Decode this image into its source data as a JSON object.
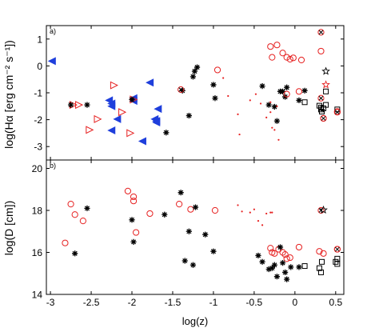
{
  "chart_data": [
    {
      "type": "scatter",
      "panel_label": "a)",
      "xlabel": "",
      "ylabel": "log(Hα [erg cm⁻² s⁻¹])",
      "xlim": [
        -3.05,
        0.6
      ],
      "ylim": [
        -3.5,
        1.5
      ],
      "xticks": [
        -3,
        -2.5,
        -2,
        -1.5,
        -1,
        -0.5,
        0,
        0.5
      ],
      "yticks": [
        -3,
        -2,
        -1,
        0,
        1
      ],
      "ytick_labels": [
        "-3",
        "-2",
        "-1",
        "0",
        "1"
      ],
      "grid": false,
      "series": [
        {
          "marker": "triangle-left-filled",
          "color": "#1f3fdc",
          "points": [
            [
              -2.98,
              0.18
            ],
            [
              -2.28,
              -1.28
            ],
            [
              -2.25,
              -1.4
            ],
            [
              -2.25,
              -1.5
            ],
            [
              -2.18,
              -1.98
            ],
            [
              -2.25,
              -2.4
            ],
            [
              -1.98,
              -1.2
            ],
            [
              -1.98,
              -1.3
            ],
            [
              -1.87,
              -2.8
            ],
            [
              -1.78,
              -0.62
            ],
            [
              -1.68,
              -1.6
            ],
            [
              -1.72,
              -1.98
            ],
            [
              -1.7,
              -2.05
            ],
            [
              -1.7,
              -2.1
            ]
          ]
        },
        {
          "marker": "triangle-right-open",
          "color": "#e62020",
          "points": [
            [
              -2.72,
              -1.45
            ],
            [
              -2.65,
              -1.45
            ],
            [
              -2.52,
              -2.38
            ],
            [
              -2.42,
              -1.98
            ],
            [
              -2.22,
              -0.72
            ],
            [
              -2.12,
              -1.72
            ],
            [
              -2.02,
              -2.5
            ],
            [
              -1.98,
              -1.25
            ]
          ]
        },
        {
          "marker": "asterisk",
          "color": "#000000",
          "points": [
            [
              -2.75,
              -1.45
            ],
            [
              -2.55,
              -1.45
            ],
            [
              -2.0,
              -1.25
            ],
            [
              -1.58,
              -2.48
            ],
            [
              -1.38,
              -0.92
            ],
            [
              -1.3,
              -1.85
            ],
            [
              -1.25,
              -0.4
            ],
            [
              -1.23,
              -0.2
            ],
            [
              -1.2,
              -0.05
            ],
            [
              -1.0,
              -0.7
            ],
            [
              -0.98,
              -1.2
            ],
            [
              -0.4,
              -0.75
            ],
            [
              -0.32,
              -1.45
            ],
            [
              -0.25,
              -1.52
            ],
            [
              -0.22,
              -2.05
            ],
            [
              -0.18,
              -0.95
            ],
            [
              -0.15,
              -0.95
            ],
            [
              -0.12,
              -1.15
            ],
            [
              -0.1,
              -0.8
            ],
            [
              0.05,
              -1.28
            ],
            [
              0.12,
              -0.92
            ]
          ]
        },
        {
          "marker": "circle-open",
          "color": "#e62020",
          "points": [
            [
              -0.95,
              -0.15
            ],
            [
              -0.3,
              0.72
            ],
            [
              -0.28,
              0.32
            ],
            [
              -0.22,
              0.78
            ],
            [
              -0.15,
              0.48
            ],
            [
              -0.1,
              0.32
            ],
            [
              -0.06,
              0.25
            ],
            [
              -0.02,
              0.3
            ],
            [
              0.08,
              0.22
            ],
            [
              0.32,
              0.55
            ],
            [
              0.35,
              -1.95
            ],
            [
              0.52,
              -1.7
            ],
            [
              0.05,
              -0.95
            ],
            [
              -0.1,
              -1.05
            ]
          ]
        },
        {
          "marker": "dot",
          "color": "#e62020",
          "points": [
            [
              -0.88,
              -0.45
            ],
            [
              -0.82,
              -1.12
            ],
            [
              -0.7,
              -1.8
            ],
            [
              -0.68,
              -2.55
            ],
            [
              -0.55,
              -1.28
            ],
            [
              -0.48,
              -1.05
            ],
            [
              -0.42,
              -1.4
            ],
            [
              -0.35,
              -1.92
            ],
            [
              -0.3,
              -1.72
            ],
            [
              -0.28,
              -2.3
            ],
            [
              -0.25,
              -2.38
            ],
            [
              -0.22,
              -1.5
            ],
            [
              -0.2,
              -2.75
            ],
            [
              -0.3,
              -1.35
            ]
          ]
        },
        {
          "marker": "square-open",
          "color": "#000000",
          "points": [
            [
              0.12,
              -1.35
            ],
            [
              0.3,
              -1.48
            ],
            [
              0.32,
              -1.55
            ],
            [
              0.32,
              -1.62
            ],
            [
              0.33,
              -1.7
            ],
            [
              0.35,
              -1.58
            ],
            [
              0.38,
              -1.45
            ],
            [
              0.38,
              -0.95
            ],
            [
              0.52,
              -1.62
            ]
          ]
        },
        {
          "marker": "circle-cross",
          "color": "#e62020",
          "points": [
            [
              -1.4,
              -0.88
            ],
            [
              0.32,
              1.25
            ],
            [
              0.32,
              -1.2
            ],
            [
              0.35,
              -1.95
            ],
            [
              0.52,
              -1.72
            ]
          ]
        },
        {
          "marker": "star-open",
          "color": "#000000",
          "points": [
            [
              0.38,
              -0.2
            ]
          ]
        },
        {
          "marker": "star-open",
          "color": "#e62020",
          "points": [
            [
              0.38,
              -0.7
            ]
          ]
        }
      ]
    },
    {
      "type": "scatter",
      "panel_label": "b)",
      "xlabel": "log(z)",
      "ylabel": "log(D [cm])",
      "xlim": [
        -3.05,
        0.6
      ],
      "ylim": [
        14,
        20.4
      ],
      "xticks": [
        -3,
        -2.5,
        -2,
        -1.5,
        -1,
        -0.5,
        0,
        0.5
      ],
      "xtick_labels": [
        "-3",
        "-2.5",
        "-2",
        "-1.5",
        "-1",
        "-0.5",
        "0",
        "0.5"
      ],
      "yticks": [
        14,
        16,
        18,
        20
      ],
      "ytick_labels": [
        "14",
        "16",
        "18",
        "20"
      ],
      "grid": false,
      "series": [
        {
          "marker": "circle-open",
          "color": "#e62020",
          "points": [
            [
              -2.82,
              16.45
            ],
            [
              -2.75,
              18.3
            ],
            [
              -2.7,
              17.8
            ],
            [
              -2.6,
              17.5
            ],
            [
              -2.05,
              18.92
            ],
            [
              -1.98,
              18.65
            ],
            [
              -1.98,
              18.45
            ],
            [
              -1.95,
              16.95
            ],
            [
              -1.78,
              17.85
            ],
            [
              -1.42,
              18.3
            ],
            [
              -1.28,
              18.05
            ],
            [
              -0.98,
              18.0
            ],
            [
              -0.3,
              16.2
            ],
            [
              -0.28,
              16.0
            ],
            [
              -0.25,
              15.95
            ],
            [
              -0.2,
              16.15
            ],
            [
              -0.15,
              16.0
            ],
            [
              -0.12,
              15.9
            ],
            [
              -0.1,
              15.7
            ],
            [
              -0.06,
              15.75
            ],
            [
              0.05,
              16.25
            ],
            [
              0.3,
              16.05
            ],
            [
              0.35,
              15.95
            ],
            [
              0.52,
              16.15
            ]
          ]
        },
        {
          "marker": "asterisk",
          "color": "#000000",
          "points": [
            [
              -2.7,
              15.95
            ],
            [
              -2.55,
              18.1
            ],
            [
              -2.0,
              17.55
            ],
            [
              -1.98,
              16.5
            ],
            [
              -1.6,
              17.8
            ],
            [
              -1.4,
              18.85
            ],
            [
              -1.35,
              15.6
            ],
            [
              -1.3,
              17.0
            ],
            [
              -1.25,
              15.4
            ],
            [
              -1.22,
              18.15
            ],
            [
              -1.1,
              16.85
            ],
            [
              -1.0,
              16.05
            ],
            [
              -0.45,
              15.85
            ],
            [
              -0.4,
              15.55
            ],
            [
              -0.32,
              15.2
            ],
            [
              -0.28,
              15.25
            ],
            [
              -0.25,
              15.4
            ],
            [
              -0.22,
              14.85
            ],
            [
              -0.18,
              16.25
            ],
            [
              -0.15,
              15.5
            ],
            [
              -0.12,
              15.05
            ],
            [
              -0.1,
              14.72
            ],
            [
              -0.05,
              15.3
            ],
            [
              0.05,
              15.3
            ]
          ]
        },
        {
          "marker": "dot",
          "color": "#e62020",
          "points": [
            [
              -0.7,
              18.25
            ],
            [
              -0.65,
              17.95
            ],
            [
              -0.55,
              17.9
            ],
            [
              -0.5,
              18.05
            ],
            [
              -0.45,
              17.5
            ],
            [
              -0.4,
              17.3
            ],
            [
              -0.35,
              17.85
            ],
            [
              -0.3,
              17.9
            ],
            [
              -0.28,
              17.9
            ]
          ]
        },
        {
          "marker": "square-open",
          "color": "#000000",
          "points": [
            [
              0.12,
              15.35
            ],
            [
              0.3,
              15.25
            ],
            [
              0.32,
              15.05
            ],
            [
              0.33,
              15.55
            ],
            [
              0.5,
              15.55
            ],
            [
              0.52,
              15.7
            ],
            [
              0.52,
              15.45
            ]
          ]
        },
        {
          "marker": "circle-cross",
          "color": "#e62020",
          "points": [
            [
              0.32,
              18.0
            ],
            [
              0.52,
              16.15
            ]
          ]
        },
        {
          "marker": "star-open",
          "color": "#000000",
          "points": [
            [
              0.35,
              18.02
            ]
          ]
        }
      ]
    }
  ]
}
